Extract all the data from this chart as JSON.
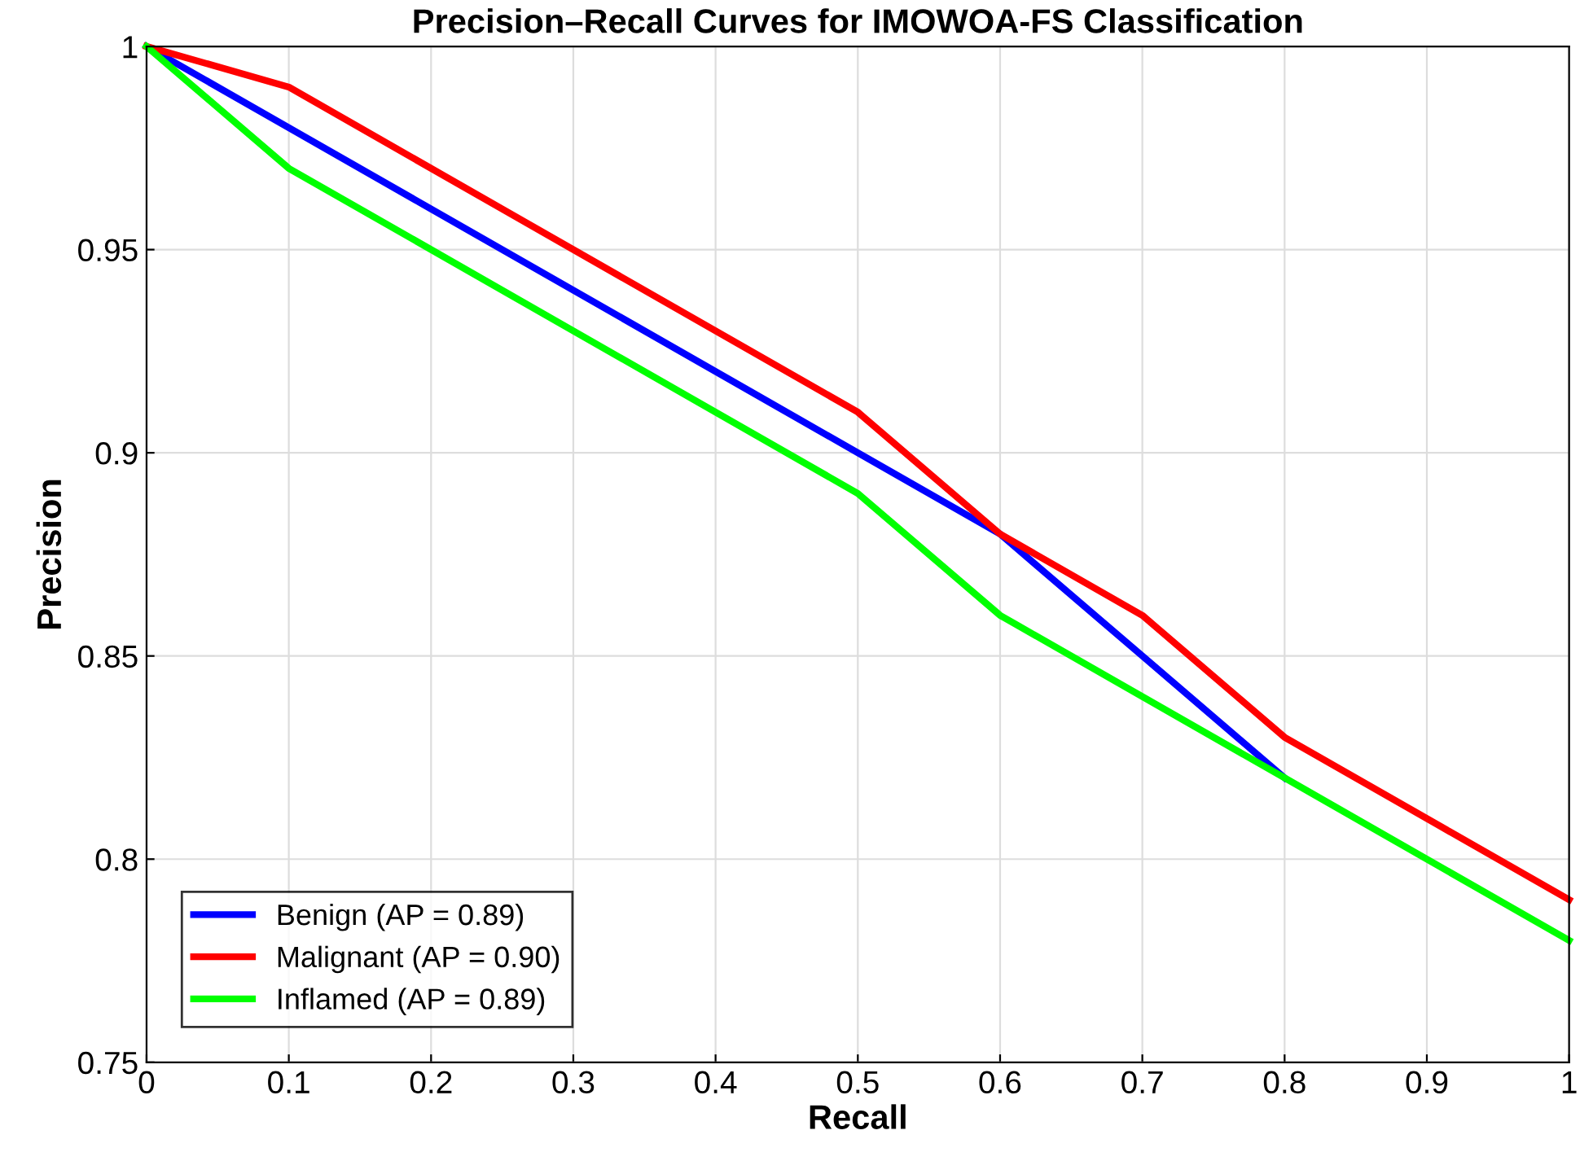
{
  "chart_data": {
    "type": "line",
    "title": "Precision–Recall Curves for IMOWOA-FS Classification",
    "xlabel": "Recall",
    "ylabel": "Precision",
    "series": [
      {
        "name": "Benign (AP = 0.89)",
        "color": "#0000ff",
        "x": [
          0,
          0.1,
          0.5,
          0.6,
          0.7,
          0.8
        ],
        "values": [
          1,
          0.98,
          0.9,
          0.88,
          0.85,
          0.82
        ]
      },
      {
        "name": "Malignant (AP = 0.90)",
        "color": "#ff0000",
        "x": [
          0,
          0.1,
          0.5,
          0.6,
          0.7,
          0.8,
          1
        ],
        "values": [
          1,
          0.99,
          0.91,
          0.88,
          0.86,
          0.83,
          0.79
        ]
      },
      {
        "name": "Inflamed (AP = 0.89)",
        "color": "#00ff00",
        "x": [
          0,
          0.1,
          0.5,
          0.6,
          0.8,
          1
        ],
        "values": [
          1,
          0.97,
          0.89,
          0.86,
          0.82,
          0.78
        ]
      }
    ],
    "xlim": [
      0,
      1
    ],
    "ylim": [
      0.75,
      1
    ],
    "xticks": [
      0,
      0.1,
      0.2,
      0.3,
      0.4,
      0.5,
      0.6,
      0.7,
      0.8,
      0.9,
      1
    ],
    "yticks": [
      0.75,
      0.8,
      0.85,
      0.9,
      0.95,
      1
    ],
    "grid": true,
    "legend": "bottom left",
    "marker": "none",
    "line_style": "solid"
  }
}
